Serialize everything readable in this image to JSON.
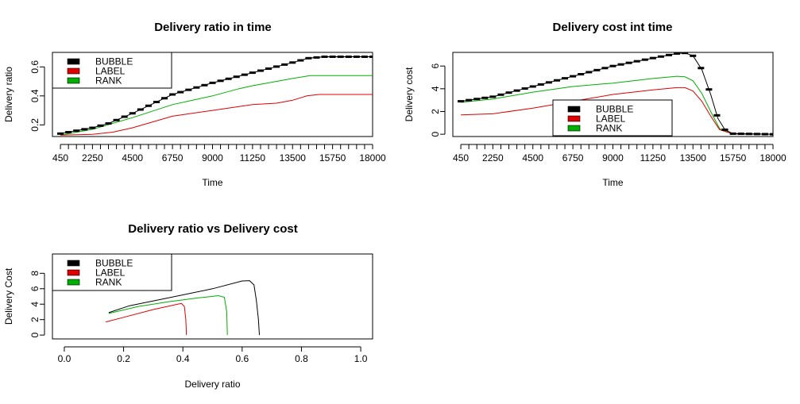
{
  "chart_data": [
    {
      "id": "ratio_time",
      "type": "line",
      "title": "Delivery ratio in time",
      "xlabel": "Time",
      "ylabel": "Delivery ratio",
      "xlim": [
        0,
        18000
      ],
      "ylim": [
        0.12,
        0.7
      ],
      "x_ticks": [
        450,
        2250,
        4500,
        6750,
        9000,
        11250,
        13500,
        15750,
        18000
      ],
      "x_tick_labels": [
        "450",
        "2250",
        "4500",
        "6750",
        "9000",
        "11250",
        "13500",
        "15750",
        "18000"
      ],
      "y_ticks": [
        0.2,
        0.4,
        0.6
      ],
      "y_tick_labels": [
        "0.2",
        "0.4",
        "0.6"
      ],
      "legend": {
        "position": "top-left",
        "labels": [
          "BUBBLE",
          "LABEL",
          "RANK"
        ]
      },
      "series": [
        {
          "name": "BUBBLE",
          "color": "#000000",
          "error_bars": true,
          "points": [
            [
              450,
              0.14
            ],
            [
              2250,
              0.18
            ],
            [
              3150,
              0.21
            ],
            [
              4500,
              0.28
            ],
            [
              6750,
              0.41
            ],
            [
              9000,
              0.49
            ],
            [
              11250,
              0.56
            ],
            [
              13500,
              0.63
            ],
            [
              14400,
              0.66
            ],
            [
              15300,
              0.67
            ],
            [
              18000,
              0.67
            ]
          ]
        },
        {
          "name": "LABEL",
          "color": "#e00000",
          "points": [
            [
              450,
              0.13
            ],
            [
              2250,
              0.135
            ],
            [
              3400,
              0.15
            ],
            [
              4500,
              0.18
            ],
            [
              6750,
              0.26
            ],
            [
              9000,
              0.3
            ],
            [
              11250,
              0.34
            ],
            [
              12600,
              0.35
            ],
            [
              13500,
              0.37
            ],
            [
              14300,
              0.4
            ],
            [
              15000,
              0.41
            ],
            [
              18000,
              0.41
            ]
          ]
        },
        {
          "name": "RANK",
          "color": "#00b000",
          "points": [
            [
              450,
              0.13
            ],
            [
              2250,
              0.17
            ],
            [
              4500,
              0.25
            ],
            [
              6750,
              0.34
            ],
            [
              9000,
              0.4
            ],
            [
              10500,
              0.45
            ],
            [
              11250,
              0.47
            ],
            [
              13500,
              0.52
            ],
            [
              14500,
              0.54
            ],
            [
              18000,
              0.54
            ]
          ]
        }
      ]
    },
    {
      "id": "cost_time",
      "type": "line",
      "title": "Delivery cost int time",
      "xlabel": "Time",
      "ylabel": "Delivery cost",
      "xlim": [
        0,
        18000
      ],
      "ylim": [
        -0.2,
        7.2
      ],
      "x_ticks": [
        450,
        2250,
        4500,
        6750,
        9000,
        11250,
        13500,
        15750,
        18000
      ],
      "x_tick_labels": [
        "450",
        "2250",
        "4500",
        "6750",
        "9000",
        "11250",
        "13500",
        "15750",
        "18000"
      ],
      "y_ticks": [
        0,
        2,
        4,
        6
      ],
      "y_tick_labels": [
        "0",
        "2",
        "4",
        "6"
      ],
      "legend": {
        "position": "bottom-center",
        "labels": [
          "BUBBLE",
          "LABEL",
          "RANK"
        ]
      },
      "series": [
        {
          "name": "BUBBLE",
          "color": "#000000",
          "error_bars": true,
          "points": [
            [
              450,
              2.9
            ],
            [
              2250,
              3.3
            ],
            [
              4500,
              4.2
            ],
            [
              6750,
              5.1
            ],
            [
              9000,
              6.0
            ],
            [
              11250,
              6.7
            ],
            [
              12600,
              7.1
            ],
            [
              13050,
              7.15
            ],
            [
              13500,
              6.9
            ],
            [
              14000,
              5.7
            ],
            [
              14500,
              3.5
            ],
            [
              14900,
              1.4
            ],
            [
              15300,
              0.4
            ],
            [
              15750,
              0.05
            ],
            [
              18000,
              0.0
            ]
          ]
        },
        {
          "name": "LABEL",
          "color": "#e00000",
          "points": [
            [
              450,
              1.7
            ],
            [
              2250,
              1.8
            ],
            [
              4500,
              2.3
            ],
            [
              6750,
              2.9
            ],
            [
              9000,
              3.5
            ],
            [
              11250,
              3.9
            ],
            [
              12600,
              4.1
            ],
            [
              13050,
              4.1
            ],
            [
              13500,
              3.8
            ],
            [
              14000,
              2.9
            ],
            [
              14500,
              1.6
            ],
            [
              15000,
              0.4
            ],
            [
              15750,
              0.02
            ],
            [
              18000,
              0.0
            ]
          ]
        },
        {
          "name": "RANK",
          "color": "#00b000",
          "points": [
            [
              450,
              2.8
            ],
            [
              2250,
              3.1
            ],
            [
              4500,
              3.7
            ],
            [
              6750,
              4.2
            ],
            [
              9000,
              4.5
            ],
            [
              11250,
              4.9
            ],
            [
              12600,
              5.1
            ],
            [
              13050,
              5.05
            ],
            [
              13500,
              4.7
            ],
            [
              14000,
              3.6
            ],
            [
              14500,
              2.0
            ],
            [
              15000,
              0.5
            ],
            [
              15750,
              0.02
            ],
            [
              18000,
              0.0
            ]
          ]
        }
      ]
    },
    {
      "id": "ratio_cost",
      "type": "line",
      "title": "Delivery ratio vs Delivery cost",
      "xlabel": "Delivery ratio",
      "ylabel": "Delivery Cost",
      "xlim": [
        -0.04,
        1.04
      ],
      "ylim": [
        -0.5,
        10.5
      ],
      "x_ticks": [
        0,
        0.2,
        0.4,
        0.6,
        0.8,
        1.0
      ],
      "x_tick_labels": [
        "0.0",
        "0.2",
        "0.4",
        "0.6",
        "0.8",
        "1.0"
      ],
      "y_ticks": [
        0,
        2,
        4,
        6,
        8
      ],
      "y_tick_labels": [
        "0",
        "2",
        "4",
        "6",
        "8"
      ],
      "legend": {
        "position": "top-left",
        "labels": [
          "BUBBLE",
          "LABEL",
          "RANK"
        ]
      },
      "series": [
        {
          "name": "BUBBLE",
          "color": "#000000",
          "points": [
            [
              0.15,
              2.9
            ],
            [
              0.22,
              3.8
            ],
            [
              0.35,
              4.8
            ],
            [
              0.5,
              6.0
            ],
            [
              0.6,
              7.0
            ],
            [
              0.625,
              7.05
            ],
            [
              0.64,
              6.5
            ],
            [
              0.648,
              4.5
            ],
            [
              0.655,
              2.0
            ],
            [
              0.658,
              0.0
            ]
          ]
        },
        {
          "name": "LABEL",
          "color": "#e00000",
          "points": [
            [
              0.14,
              1.7
            ],
            [
              0.2,
              2.3
            ],
            [
              0.3,
              3.3
            ],
            [
              0.37,
              3.9
            ],
            [
              0.395,
              4.1
            ],
            [
              0.405,
              3.7
            ],
            [
              0.41,
              2.0
            ],
            [
              0.412,
              0.0
            ]
          ]
        },
        {
          "name": "RANK",
          "color": "#00b000",
          "points": [
            [
              0.15,
              2.8
            ],
            [
              0.25,
              3.7
            ],
            [
              0.35,
              4.3
            ],
            [
              0.45,
              4.8
            ],
            [
              0.52,
              5.1
            ],
            [
              0.54,
              4.9
            ],
            [
              0.548,
              3.0
            ],
            [
              0.55,
              0.0
            ]
          ]
        }
      ]
    }
  ]
}
